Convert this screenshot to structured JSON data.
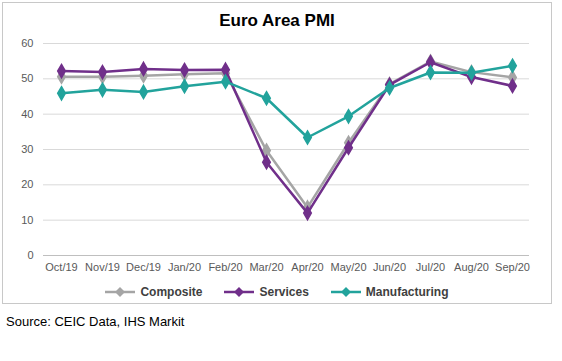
{
  "chart_data": {
    "type": "line",
    "title": "Euro Area PMI",
    "caption": "Source: CEIC Data, IHS Markit",
    "categories": [
      "Oct/19",
      "Nov/19",
      "Dec/19",
      "Jan/20",
      "Feb/20",
      "Mar/20",
      "Apr/20",
      "May/20",
      "Jun/20",
      "Jul/20",
      "Aug/20",
      "Sep/20"
    ],
    "series": [
      {
        "name": "Composite",
        "color": "#a5a5a5",
        "marker": "diamond",
        "values": [
          50.6,
          50.6,
          50.9,
          51.3,
          51.6,
          29.7,
          13.6,
          31.9,
          48.5,
          54.9,
          51.9,
          50.4
        ]
      },
      {
        "name": "Services",
        "color": "#702f8a",
        "marker": "diamond",
        "values": [
          52.2,
          51.9,
          52.8,
          52.5,
          52.6,
          26.4,
          12.0,
          30.5,
          48.3,
          54.7,
          50.5,
          48.0
        ]
      },
      {
        "name": "Manufacturing",
        "color": "#22a39c",
        "marker": "diamond",
        "values": [
          45.9,
          46.9,
          46.3,
          47.9,
          49.2,
          44.5,
          33.4,
          39.4,
          47.4,
          51.8,
          51.7,
          53.7
        ]
      }
    ],
    "ylim": [
      0,
      60
    ],
    "yticks": [
      0,
      10,
      20,
      30,
      40,
      50,
      60
    ],
    "grid": true,
    "legend": "bottom"
  }
}
